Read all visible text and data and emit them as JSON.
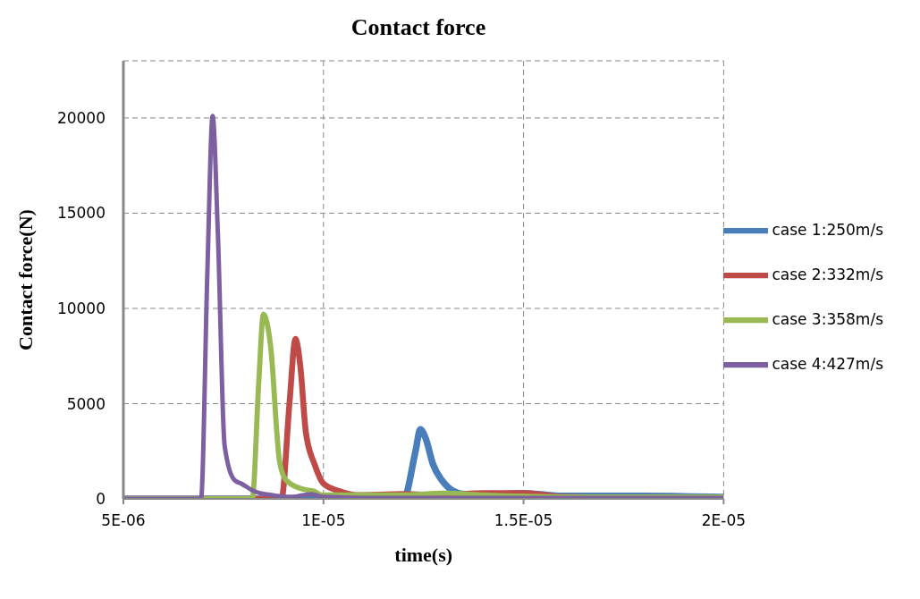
{
  "chart_data": {
    "type": "line",
    "title": "Contact force",
    "xlabel": "time(s)",
    "ylabel": "Contact force(N)",
    "xlim": [
      5e-06,
      2e-05
    ],
    "xticks": [
      {
        "value": 5e-06,
        "label": "5E-06"
      },
      {
        "value": 1e-05,
        "label": "1E-05"
      },
      {
        "value": 1.5e-05,
        "label": "1.5E-05"
      },
      {
        "value": 2e-05,
        "label": "2E-05"
      }
    ],
    "ylim": [
      0,
      23000
    ],
    "yticks": [
      0,
      5000,
      10000,
      15000,
      20000
    ],
    "grid": true,
    "legend": "right",
    "marker": "none",
    "line_style": "solid",
    "series": [
      {
        "name": "case 1:250m/s",
        "color": "#4a7ebb",
        "x": [
          5e-06,
          1e-05,
          1.2e-05,
          1.23e-05,
          1.242e-05,
          1.255e-05,
          1.274e-05,
          1.295e-05,
          1.312e-05,
          1.35e-05,
          1.4e-05,
          1.5e-05,
          1.6e-05,
          1.8e-05,
          2e-05
        ],
        "values": [
          0,
          0,
          0,
          2500,
          3650,
          3200,
          1800,
          1000,
          600,
          250,
          200,
          300,
          150,
          150,
          100
        ]
      },
      {
        "name": "case 2:332m/s",
        "color": "#be4b48",
        "x": [
          5e-06,
          8.95e-06,
          9.15e-06,
          9.3e-06,
          9.42e-06,
          9.56e-06,
          9.78e-06,
          1e-05,
          1.04e-05,
          1.08e-05,
          1.2e-05,
          1.3e-05,
          1.4e-05,
          1.5e-05,
          1.6e-05,
          1.8e-05,
          2e-05
        ],
        "values": [
          0,
          0,
          5000,
          8400,
          7000,
          3500,
          1800,
          800,
          400,
          200,
          250,
          200,
          300,
          300,
          100,
          50,
          50
        ]
      },
      {
        "name": "case 3:358m/s",
        "color": "#98b954",
        "x": [
          5e-06,
          8.22e-06,
          8.38e-06,
          8.5e-06,
          8.68e-06,
          8.9e-06,
          9.06e-06,
          9.5e-06,
          9.76e-06,
          9.96e-06,
          1.1e-05,
          1.2e-05,
          1.3e-05,
          1.4e-05,
          1.6e-05,
          2e-05
        ],
        "values": [
          0,
          0,
          6000,
          9700,
          8000,
          2000,
          1000,
          500,
          400,
          200,
          200,
          200,
          300,
          200,
          100,
          100
        ]
      },
      {
        "name": "case 4:427m/s",
        "color": "#7d60a0",
        "x": [
          5e-06,
          6.94e-06,
          7.1e-06,
          7.23e-06,
          7.36e-06,
          7.53e-06,
          7.77e-06,
          7.95e-06,
          8.27e-06,
          8.7e-06,
          9.2e-06,
          9.7e-06,
          1e-05,
          1.1e-05,
          1.4e-05,
          2e-05
        ],
        "values": [
          0,
          0,
          12000,
          20100,
          14000,
          2800,
          1000,
          800,
          400,
          200,
          100,
          250,
          100,
          50,
          50,
          50
        ]
      }
    ]
  }
}
